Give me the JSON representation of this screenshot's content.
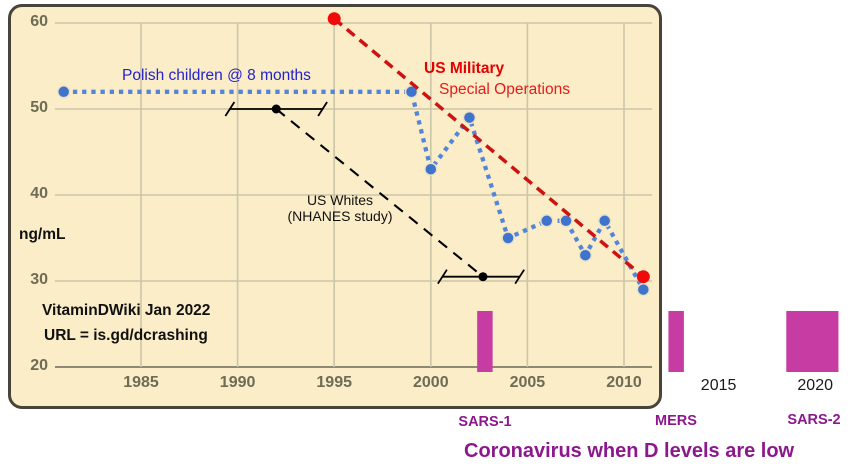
{
  "colors": {
    "page_bg": "#ffffff",
    "panel_bg": "#faedc8",
    "panel_border": "#47443b",
    "grid": "#ccc5a8",
    "axis": "#8e8972",
    "tick_text": "#6f6b55",
    "outer_tick_text": "#1a1a1a",
    "blue_series": "#5585da",
    "blue_marker": "#3f74ce",
    "blue_text": "#2222cf",
    "red_series": "#ce1212",
    "red_marker": "#f00a0a",
    "red_text": "#e30000",
    "black_series": "#000000",
    "bar": "#c63ca2",
    "purple_text": "#8c198c"
  },
  "chart_data": {
    "type": "line",
    "title": "",
    "ylabel": "ng/mL",
    "xlabel": "",
    "grid": true,
    "ylim": [
      20,
      62
    ],
    "xlim": [
      1980.5,
      2012.2
    ],
    "y_ticks": [
      "60",
      "50",
      "40",
      "30",
      "20"
    ],
    "x_ticks_in": [
      "1985",
      "1990",
      "1995",
      "2000",
      "2005",
      "2010"
    ],
    "x_ticks_out": [
      "2015",
      "2020"
    ],
    "series": [
      {
        "name": "Polish children @ 8 months",
        "style": "dotted",
        "color": "#5585da",
        "marker_color": "#3f74ce",
        "x": [
          1981,
          1999,
          2000,
          2002,
          2004,
          2006,
          2007,
          2008,
          2009,
          2011
        ],
        "y": [
          52,
          52,
          43,
          49,
          35,
          37,
          37,
          33,
          37,
          29
        ]
      },
      {
        "name": "US Military Special Operations",
        "style": "dashed",
        "color": "#ce1212",
        "marker_color": "#f00a0a",
        "x": [
          1995,
          2011
        ],
        "y": [
          60.5,
          30.5
        ]
      },
      {
        "name": "US Whites (NHANES study)",
        "style": "dashed",
        "color": "#000000",
        "marker_color": "#000000",
        "x": [
          1992,
          2002.7
        ],
        "y": [
          50,
          30.5
        ],
        "error_spans_x": [
          [
            1989.6,
            1994.4
          ],
          [
            2000.6,
            2004.6
          ]
        ]
      }
    ],
    "event_bars": {
      "color": "#c63ca2",
      "items": [
        {
          "label": "SARS-1",
          "x_start": 2002.4,
          "x_end": 2003.2
        },
        {
          "label": "MERS",
          "x_start": 2012.3,
          "x_end": 2013.1
        },
        {
          "label": "SARS-2",
          "x_start": 2018.4,
          "x_end": 2021.1
        }
      ]
    },
    "caption": "Coronavirus when D levels are low"
  },
  "labels": {
    "polish": "Polish children @ 8 months",
    "military_bold": "US Military",
    "military_sub": "Special Operations",
    "whites_line1": "US Whites",
    "whites_line2": "(NHANES  study)",
    "unit": "ng/mL",
    "source_line1": "VitaminDWiki Jan 2022",
    "source_line2": "URL = is.gd/dcrashing",
    "caption": "Coronavirus when D levels are low",
    "bar_labels": [
      "SARS-1",
      "MERS",
      "SARS-2"
    ]
  }
}
